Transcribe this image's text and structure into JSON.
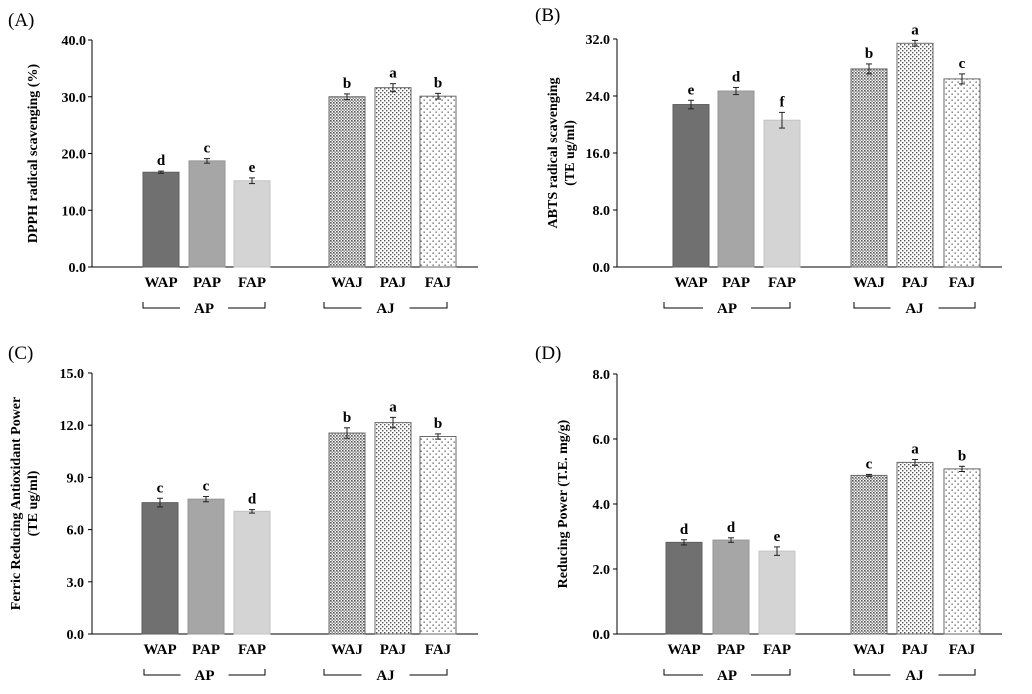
{
  "chart_data": [
    {
      "type": "bar",
      "panel_label": "(A)",
      "ylabel_lines": [
        "DPPH radical scavenging (%)"
      ],
      "ylim": [
        0,
        40
      ],
      "yticks": [
        "0.0",
        "10.0",
        "20.0",
        "30.0",
        "40.0"
      ],
      "categories": [
        "WAP",
        "PAP",
        "FAP",
        "WAJ",
        "PAJ",
        "FAJ"
      ],
      "groups": [
        {
          "label": "AP"
        },
        {
          "label": "AJ"
        }
      ],
      "values": [
        16.7,
        18.7,
        15.2,
        30.0,
        31.6,
        30.1
      ],
      "errors": [
        0.2,
        0.4,
        0.5,
        0.5,
        0.7,
        0.5
      ],
      "letters": [
        "d",
        "c",
        "e",
        "b",
        "a",
        "b"
      ]
    },
    {
      "type": "bar",
      "panel_label": "(B)",
      "ylabel_lines": [
        "ABTS radical scavenging",
        "(TE ug/ml)"
      ],
      "ylim": [
        0,
        32
      ],
      "yticks": [
        "0.0",
        "8.0",
        "16.0",
        "24.0",
        "32.0"
      ],
      "categories": [
        "WAP",
        "PAP",
        "FAP",
        "WAJ",
        "PAJ",
        "FAJ"
      ],
      "groups": [
        {
          "label": "AP"
        },
        {
          "label": "AJ"
        }
      ],
      "values": [
        22.8,
        24.7,
        20.6,
        27.8,
        31.4,
        26.4
      ],
      "errors": [
        0.6,
        0.5,
        1.1,
        0.7,
        0.4,
        0.7
      ],
      "letters": [
        "e",
        "d",
        "f",
        "b",
        "a",
        "c"
      ]
    },
    {
      "type": "bar",
      "panel_label": "(C)",
      "ylabel_lines": [
        "Ferric Reducing Antioxidant Power",
        "(TE ug/ml)"
      ],
      "ylim": [
        0,
        15
      ],
      "yticks": [
        "0.0",
        "3.0",
        "6.0",
        "9.0",
        "12.0",
        "15.0"
      ],
      "categories": [
        "WAP",
        "PAP",
        "FAP",
        "WAJ",
        "PAJ",
        "FAJ"
      ],
      "groups": [
        {
          "label": "AP"
        },
        {
          "label": "AJ"
        }
      ],
      "values": [
        7.55,
        7.75,
        7.05,
        11.55,
        12.15,
        11.35
      ],
      "errors": [
        0.25,
        0.15,
        0.1,
        0.3,
        0.3,
        0.15
      ],
      "letters": [
        "c",
        "c",
        "d",
        "b",
        "a",
        "b"
      ]
    },
    {
      "type": "bar",
      "panel_label": "(D)",
      "ylabel_lines": [
        "Reducing Power (T.E. mg/g)"
      ],
      "ylim": [
        0,
        8
      ],
      "yticks": [
        "0.0",
        "2.0",
        "4.0",
        "6.0",
        "8.0"
      ],
      "categories": [
        "WAP",
        "PAP",
        "FAP",
        "WAJ",
        "PAJ",
        "FAJ"
      ],
      "groups": [
        {
          "label": "AP"
        },
        {
          "label": "AJ"
        }
      ],
      "values": [
        2.82,
        2.89,
        2.55,
        4.88,
        5.28,
        5.08
      ],
      "errors": [
        0.08,
        0.07,
        0.13,
        0.03,
        0.09,
        0.08
      ],
      "letters": [
        "d",
        "d",
        "e",
        "c",
        "a",
        "b"
      ]
    }
  ]
}
